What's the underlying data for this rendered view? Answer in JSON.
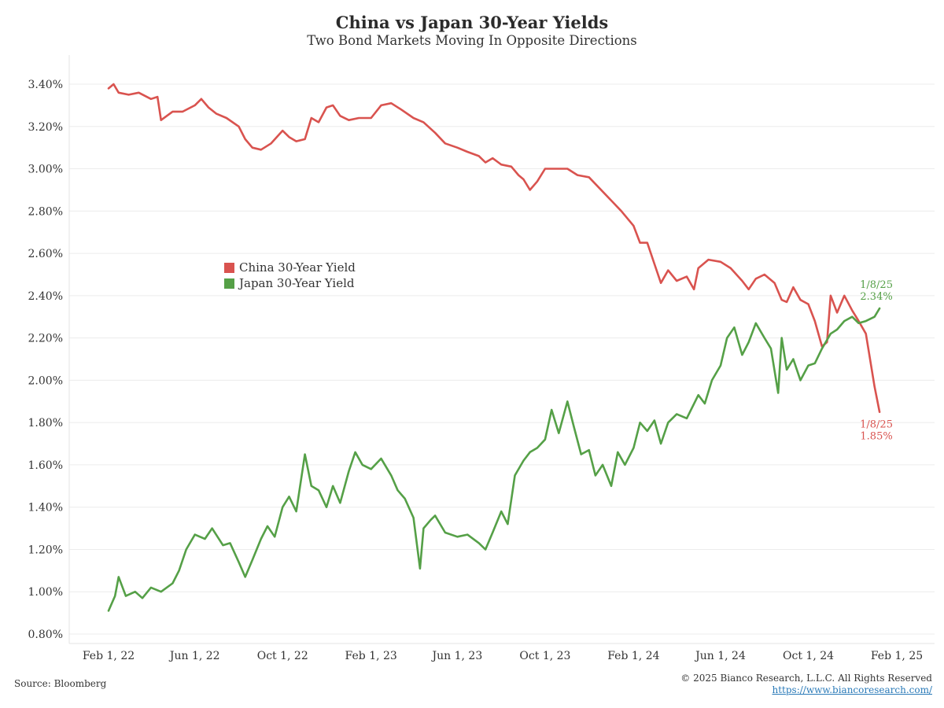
{
  "chart_data": {
    "type": "line",
    "title": "China vs Japan 30-Year Yields",
    "subtitle": "Two Bond Markets Moving In Opposite Directions",
    "xlabel": "",
    "ylabel": "",
    "xlim": [
      "2022-02-01",
      "2025-02-01"
    ],
    "ylim": [
      0.8,
      3.4
    ],
    "yticks": [
      "0.80%",
      "1.00%",
      "1.20%",
      "1.40%",
      "1.60%",
      "1.80%",
      "2.00%",
      "2.20%",
      "2.40%",
      "2.60%",
      "2.80%",
      "3.00%",
      "3.20%",
      "3.40%"
    ],
    "ytick_values": [
      0.8,
      1.0,
      1.2,
      1.4,
      1.6,
      1.8,
      2.0,
      2.2,
      2.4,
      2.6,
      2.8,
      3.0,
      3.2,
      3.4
    ],
    "xticks": [
      "Feb 1, 22",
      "Jun 1, 22",
      "Oct 1, 22",
      "Feb 1, 23",
      "Jun 1, 23",
      "Oct 1, 23",
      "Feb 1, 24",
      "Jun 1, 24",
      "Oct 1, 24",
      "Feb 1, 25"
    ],
    "xtick_dates": [
      "2022-02-01",
      "2022-06-01",
      "2022-10-01",
      "2023-02-01",
      "2023-06-01",
      "2023-10-01",
      "2024-02-01",
      "2024-06-01",
      "2024-10-01",
      "2025-02-01"
    ],
    "grid": "horizontal",
    "legend_position": "middle-left",
    "series": [
      {
        "name": "China 30-Year Yield",
        "color": "#d9534f",
        "points": [
          [
            "2022-02-01",
            3.38
          ],
          [
            "2022-02-08",
            3.4
          ],
          [
            "2022-02-15",
            3.36
          ],
          [
            "2022-03-01",
            3.35
          ],
          [
            "2022-03-15",
            3.36
          ],
          [
            "2022-04-01",
            3.33
          ],
          [
            "2022-04-10",
            3.34
          ],
          [
            "2022-04-15",
            3.23
          ],
          [
            "2022-05-01",
            3.27
          ],
          [
            "2022-05-15",
            3.27
          ],
          [
            "2022-06-01",
            3.3
          ],
          [
            "2022-06-10",
            3.33
          ],
          [
            "2022-06-20",
            3.29
          ],
          [
            "2022-07-01",
            3.26
          ],
          [
            "2022-07-15",
            3.24
          ],
          [
            "2022-08-01",
            3.2
          ],
          [
            "2022-08-10",
            3.14
          ],
          [
            "2022-08-20",
            3.1
          ],
          [
            "2022-09-01",
            3.09
          ],
          [
            "2022-09-15",
            3.12
          ],
          [
            "2022-10-01",
            3.18
          ],
          [
            "2022-10-10",
            3.15
          ],
          [
            "2022-10-20",
            3.13
          ],
          [
            "2022-11-01",
            3.14
          ],
          [
            "2022-11-10",
            3.24
          ],
          [
            "2022-11-20",
            3.22
          ],
          [
            "2022-12-01",
            3.29
          ],
          [
            "2022-12-10",
            3.3
          ],
          [
            "2022-12-20",
            3.25
          ],
          [
            "2023-01-01",
            3.23
          ],
          [
            "2023-01-15",
            3.24
          ],
          [
            "2023-02-01",
            3.24
          ],
          [
            "2023-02-15",
            3.3
          ],
          [
            "2023-03-01",
            3.31
          ],
          [
            "2023-03-15",
            3.28
          ],
          [
            "2023-04-01",
            3.24
          ],
          [
            "2023-04-15",
            3.22
          ],
          [
            "2023-05-01",
            3.17
          ],
          [
            "2023-05-15",
            3.12
          ],
          [
            "2023-06-01",
            3.1
          ],
          [
            "2023-06-15",
            3.08
          ],
          [
            "2023-07-01",
            3.06
          ],
          [
            "2023-07-10",
            3.03
          ],
          [
            "2023-07-20",
            3.05
          ],
          [
            "2023-08-01",
            3.02
          ],
          [
            "2023-08-15",
            3.01
          ],
          [
            "2023-08-25",
            2.97
          ],
          [
            "2023-09-01",
            2.95
          ],
          [
            "2023-09-10",
            2.9
          ],
          [
            "2023-09-20",
            2.94
          ],
          [
            "2023-10-01",
            3.0
          ],
          [
            "2023-10-15",
            3.0
          ],
          [
            "2023-11-01",
            3.0
          ],
          [
            "2023-11-15",
            2.97
          ],
          [
            "2023-12-01",
            2.96
          ],
          [
            "2023-12-15",
            2.91
          ],
          [
            "2024-01-01",
            2.85
          ],
          [
            "2024-01-15",
            2.8
          ],
          [
            "2024-02-01",
            2.73
          ],
          [
            "2024-02-10",
            2.65
          ],
          [
            "2024-02-20",
            2.65
          ],
          [
            "2024-03-01",
            2.55
          ],
          [
            "2024-03-10",
            2.46
          ],
          [
            "2024-03-20",
            2.52
          ],
          [
            "2024-04-01",
            2.47
          ],
          [
            "2024-04-15",
            2.49
          ],
          [
            "2024-04-25",
            2.43
          ],
          [
            "2024-05-01",
            2.53
          ],
          [
            "2024-05-15",
            2.57
          ],
          [
            "2024-06-01",
            2.56
          ],
          [
            "2024-06-15",
            2.53
          ],
          [
            "2024-07-01",
            2.47
          ],
          [
            "2024-07-10",
            2.43
          ],
          [
            "2024-07-20",
            2.48
          ],
          [
            "2024-08-01",
            2.5
          ],
          [
            "2024-08-15",
            2.46
          ],
          [
            "2024-08-25",
            2.38
          ],
          [
            "2024-09-01",
            2.37
          ],
          [
            "2024-09-10",
            2.44
          ],
          [
            "2024-09-20",
            2.38
          ],
          [
            "2024-10-01",
            2.36
          ],
          [
            "2024-10-10",
            2.28
          ],
          [
            "2024-10-20",
            2.16
          ],
          [
            "2024-10-27",
            2.18
          ],
          [
            "2024-11-01",
            2.4
          ],
          [
            "2024-11-10",
            2.32
          ],
          [
            "2024-11-20",
            2.4
          ],
          [
            "2024-12-01",
            2.33
          ],
          [
            "2024-12-10",
            2.28
          ],
          [
            "2024-12-20",
            2.22
          ],
          [
            "2025-01-01",
            1.97
          ],
          [
            "2025-01-08",
            1.85
          ]
        ]
      },
      {
        "name": "Japan 30-Year Yield",
        "color": "#55a047",
        "points": [
          [
            "2022-02-01",
            0.91
          ],
          [
            "2022-02-10",
            0.98
          ],
          [
            "2022-02-15",
            1.07
          ],
          [
            "2022-02-25",
            0.98
          ],
          [
            "2022-03-10",
            1.0
          ],
          [
            "2022-03-20",
            0.97
          ],
          [
            "2022-04-01",
            1.02
          ],
          [
            "2022-04-15",
            1.0
          ],
          [
            "2022-05-01",
            1.04
          ],
          [
            "2022-05-10",
            1.1
          ],
          [
            "2022-05-20",
            1.2
          ],
          [
            "2022-06-01",
            1.27
          ],
          [
            "2022-06-15",
            1.25
          ],
          [
            "2022-06-25",
            1.3
          ],
          [
            "2022-07-10",
            1.22
          ],
          [
            "2022-07-20",
            1.23
          ],
          [
            "2022-08-01",
            1.14
          ],
          [
            "2022-08-10",
            1.07
          ],
          [
            "2022-08-20",
            1.15
          ],
          [
            "2022-09-01",
            1.25
          ],
          [
            "2022-09-10",
            1.31
          ],
          [
            "2022-09-20",
            1.26
          ],
          [
            "2022-10-01",
            1.4
          ],
          [
            "2022-10-10",
            1.45
          ],
          [
            "2022-10-20",
            1.38
          ],
          [
            "2022-11-01",
            1.65
          ],
          [
            "2022-11-10",
            1.5
          ],
          [
            "2022-11-20",
            1.48
          ],
          [
            "2022-12-01",
            1.4
          ],
          [
            "2022-12-10",
            1.5
          ],
          [
            "2022-12-20",
            1.42
          ],
          [
            "2023-01-01",
            1.57
          ],
          [
            "2023-01-10",
            1.66
          ],
          [
            "2023-01-20",
            1.6
          ],
          [
            "2023-02-01",
            1.58
          ],
          [
            "2023-02-15",
            1.63
          ],
          [
            "2023-03-01",
            1.55
          ],
          [
            "2023-03-10",
            1.48
          ],
          [
            "2023-03-20",
            1.44
          ],
          [
            "2023-04-01",
            1.35
          ],
          [
            "2023-04-10",
            1.11
          ],
          [
            "2023-04-15",
            1.3
          ],
          [
            "2023-04-25",
            1.34
          ],
          [
            "2023-05-01",
            1.36
          ],
          [
            "2023-05-15",
            1.28
          ],
          [
            "2023-06-01",
            1.26
          ],
          [
            "2023-06-15",
            1.27
          ],
          [
            "2023-07-01",
            1.23
          ],
          [
            "2023-07-10",
            1.2
          ],
          [
            "2023-07-20",
            1.28
          ],
          [
            "2023-08-01",
            1.38
          ],
          [
            "2023-08-10",
            1.32
          ],
          [
            "2023-08-20",
            1.55
          ],
          [
            "2023-09-01",
            1.62
          ],
          [
            "2023-09-10",
            1.66
          ],
          [
            "2023-09-20",
            1.68
          ],
          [
            "2023-10-01",
            1.72
          ],
          [
            "2023-10-10",
            1.86
          ],
          [
            "2023-10-20",
            1.75
          ],
          [
            "2023-11-01",
            1.9
          ],
          [
            "2023-11-10",
            1.78
          ],
          [
            "2023-11-20",
            1.65
          ],
          [
            "2023-12-01",
            1.67
          ],
          [
            "2023-12-10",
            1.55
          ],
          [
            "2023-12-20",
            1.6
          ],
          [
            "2024-01-01",
            1.5
          ],
          [
            "2024-01-10",
            1.66
          ],
          [
            "2024-01-20",
            1.6
          ],
          [
            "2024-02-01",
            1.68
          ],
          [
            "2024-02-10",
            1.8
          ],
          [
            "2024-02-20",
            1.76
          ],
          [
            "2024-03-01",
            1.81
          ],
          [
            "2024-03-10",
            1.7
          ],
          [
            "2024-03-20",
            1.8
          ],
          [
            "2024-04-01",
            1.84
          ],
          [
            "2024-04-15",
            1.82
          ],
          [
            "2024-05-01",
            1.93
          ],
          [
            "2024-05-10",
            1.89
          ],
          [
            "2024-05-20",
            2.0
          ],
          [
            "2024-06-01",
            2.07
          ],
          [
            "2024-06-10",
            2.2
          ],
          [
            "2024-06-20",
            2.25
          ],
          [
            "2024-07-01",
            2.12
          ],
          [
            "2024-07-10",
            2.18
          ],
          [
            "2024-07-20",
            2.27
          ],
          [
            "2024-08-01",
            2.2
          ],
          [
            "2024-08-10",
            2.15
          ],
          [
            "2024-08-20",
            1.94
          ],
          [
            "2024-08-25",
            2.2
          ],
          [
            "2024-09-01",
            2.05
          ],
          [
            "2024-09-10",
            2.1
          ],
          [
            "2024-09-20",
            2.0
          ],
          [
            "2024-10-01",
            2.07
          ],
          [
            "2024-10-10",
            2.08
          ],
          [
            "2024-10-20",
            2.15
          ],
          [
            "2024-11-01",
            2.22
          ],
          [
            "2024-11-10",
            2.24
          ],
          [
            "2024-11-20",
            2.28
          ],
          [
            "2024-12-01",
            2.3
          ],
          [
            "2024-12-10",
            2.27
          ],
          [
            "2024-12-20",
            2.28
          ],
          [
            "2025-01-01",
            2.3
          ],
          [
            "2025-01-08",
            2.34
          ]
        ]
      }
    ],
    "annotations": [
      {
        "series": "Japan 30-Year Yield",
        "date_text": "1/8/25",
        "value_text": "2.34%",
        "color": "#55a047"
      },
      {
        "series": "China 30-Year Yield",
        "date_text": "1/8/25",
        "value_text": "1.85%",
        "color": "#d9534f"
      }
    ]
  },
  "legend": {
    "items": [
      {
        "label": "China 30-Year Yield",
        "color": "#d9534f"
      },
      {
        "label": "Japan 30-Year Yield",
        "color": "#55a047"
      }
    ]
  },
  "footer": {
    "source": "Source: Bloomberg",
    "copyright": "© 2025 Bianco Research, L.L.C. All Rights Reserved",
    "url": "https://www.biancoresearch.com/"
  }
}
